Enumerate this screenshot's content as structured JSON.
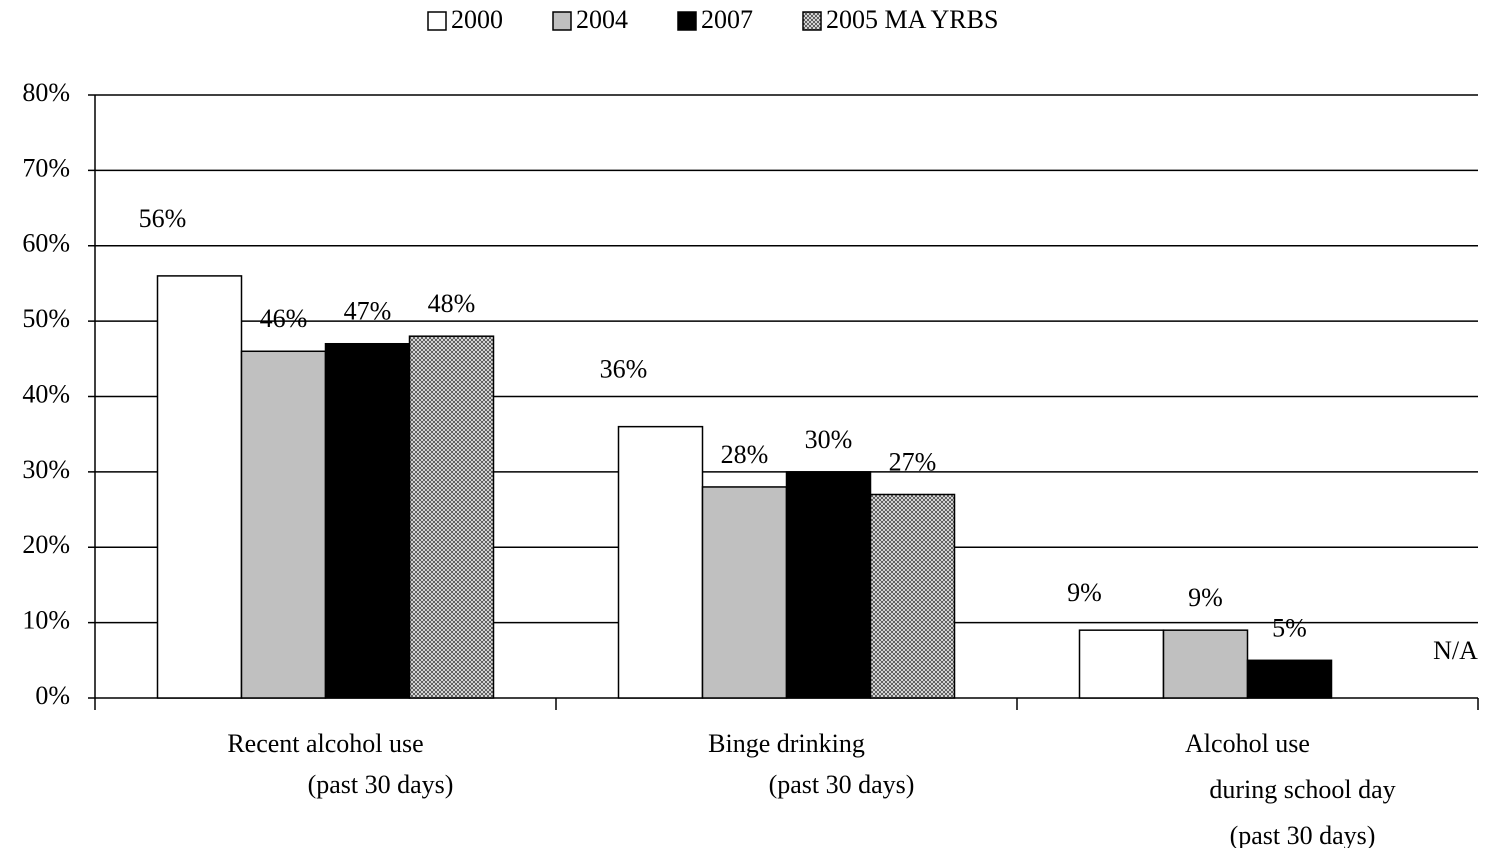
{
  "chart_data": {
    "type": "bar",
    "categories": [
      "Recent alcohol use\n(past 30 days)",
      "Binge drinking\n(past 30 days)",
      "Alcohol use\nduring school day\n(past 30 days)"
    ],
    "series": [
      {
        "name": "2000",
        "color": "#ffffff",
        "values": [
          56,
          36,
          9
        ],
        "value_labels": [
          "56%",
          "36%",
          "9%"
        ]
      },
      {
        "name": "2004",
        "color": "#c0c0c0",
        "values": [
          46,
          28,
          9
        ],
        "value_labels": [
          "46%",
          "28%",
          "9%"
        ]
      },
      {
        "name": "2007",
        "color": "#000000",
        "values": [
          47,
          30,
          5
        ],
        "value_labels": [
          "47%",
          "30%",
          "5%"
        ]
      },
      {
        "name": "2005 MA YRBS",
        "color": "#a0a0a0",
        "pattern": "crosshatch",
        "values": [
          48,
          27,
          null
        ],
        "value_labels": [
          "48%",
          "27%",
          "N/A"
        ]
      }
    ],
    "ylim": [
      0,
      80
    ],
    "yticks": [
      {
        "value": 0,
        "label": "0%"
      },
      {
        "value": 10,
        "label": "10%"
      },
      {
        "value": 20,
        "label": "20%"
      },
      {
        "value": 30,
        "label": "30%"
      },
      {
        "value": 40,
        "label": "40%"
      },
      {
        "value": 50,
        "label": "50%"
      },
      {
        "value": 60,
        "label": "60%"
      },
      {
        "value": 70,
        "label": "70%"
      },
      {
        "value": 80,
        "label": "80%"
      }
    ],
    "grid": true,
    "legend": "top"
  }
}
